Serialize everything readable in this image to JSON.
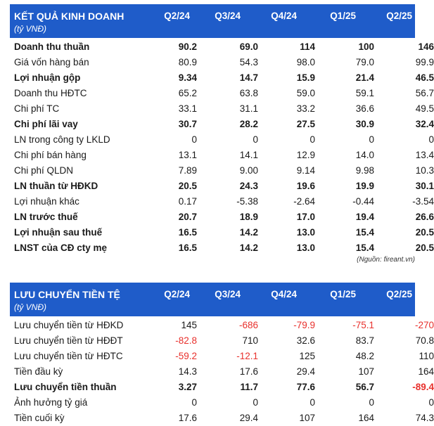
{
  "income": {
    "title": "KẾT QUẢ KINH DOANH",
    "unit": "(tỷ VNĐ)",
    "periods": [
      "Q2/24",
      "Q3/24",
      "Q4/24",
      "Q1/25",
      "Q2/25"
    ],
    "rows": [
      {
        "label": "Doanh thu thuần",
        "bold": true,
        "values": [
          "90.2",
          "69.0",
          "114",
          "100",
          "146"
        ]
      },
      {
        "label": "Giá vốn hàng bán",
        "bold": false,
        "values": [
          "80.9",
          "54.3",
          "98.0",
          "79.0",
          "99.9"
        ]
      },
      {
        "label": "Lợi nhuận gộp",
        "bold": true,
        "values": [
          "9.34",
          "14.7",
          "15.9",
          "21.4",
          "46.5"
        ]
      },
      {
        "label": "Doanh thu HĐTC",
        "bold": false,
        "values": [
          "65.2",
          "63.8",
          "59.0",
          "59.1",
          "56.7"
        ]
      },
      {
        "label": "Chi phí TC",
        "bold": false,
        "values": [
          "33.1",
          "31.1",
          "33.2",
          "36.6",
          "49.5"
        ]
      },
      {
        "label": "Chi phí lãi vay",
        "bold": true,
        "values": [
          "30.7",
          "28.2",
          "27.5",
          "30.9",
          "32.4"
        ]
      },
      {
        "label": "LN trong công ty LKLD",
        "bold": false,
        "values": [
          "0",
          "0",
          "0",
          "0",
          "0"
        ]
      },
      {
        "label": "Chi phí bán hàng",
        "bold": false,
        "values": [
          "13.1",
          "14.1",
          "12.9",
          "14.0",
          "13.4"
        ]
      },
      {
        "label": "Chi phí QLDN",
        "bold": false,
        "values": [
          "7.89",
          "9.00",
          "9.14",
          "9.98",
          "10.3"
        ]
      },
      {
        "label": "LN thuần từ HĐKD",
        "bold": true,
        "values": [
          "20.5",
          "24.3",
          "19.6",
          "19.9",
          "30.1"
        ]
      },
      {
        "label": "Lợi nhuận khác",
        "bold": false,
        "values": [
          "0.17",
          "-5.38",
          "-2.64",
          "-0.44",
          "-3.54"
        ]
      },
      {
        "label": "LN trước thuế",
        "bold": true,
        "values": [
          "20.7",
          "18.9",
          "17.0",
          "19.4",
          "26.6"
        ]
      },
      {
        "label": "Lợi nhuận sau thuế",
        "bold": true,
        "values": [
          "16.5",
          "14.2",
          "13.0",
          "15.4",
          "20.5"
        ]
      },
      {
        "label": "LNST của CĐ cty mẹ",
        "bold": true,
        "values": [
          "16.5",
          "14.2",
          "13.0",
          "15.4",
          "20.5"
        ]
      }
    ],
    "source": "(Nguồn: fireant.vn)"
  },
  "cashflow": {
    "title": "LƯU CHUYỂN TIỀN TỆ",
    "unit": "(tỷ VNĐ)",
    "periods": [
      "Q2/24",
      "Q3/24",
      "Q4/24",
      "Q1/25",
      "Q2/25"
    ],
    "rows": [
      {
        "label": "Lưu chuyển tiền từ HĐKD",
        "bold": false,
        "values": [
          "145",
          "-686",
          "-79.9",
          "-75.1",
          "-270"
        ],
        "neg": [
          false,
          true,
          true,
          true,
          true
        ]
      },
      {
        "label": "Lưu chuyển tiền từ HĐĐT",
        "bold": false,
        "values": [
          "-82.8",
          "710",
          "32.6",
          "83.7",
          "70.8"
        ],
        "neg": [
          true,
          false,
          false,
          false,
          false
        ]
      },
      {
        "label": "Lưu chuyển tiền từ HĐTC",
        "bold": false,
        "values": [
          "-59.2",
          "-12.1",
          "125",
          "48.2",
          "110"
        ],
        "neg": [
          true,
          true,
          false,
          false,
          false
        ]
      },
      {
        "label": "Tiền đầu kỳ",
        "bold": false,
        "values": [
          "14.3",
          "17.6",
          "29.4",
          "107",
          "164"
        ],
        "neg": [
          false,
          false,
          false,
          false,
          false
        ]
      },
      {
        "label": "Lưu chuyển tiền thuần",
        "bold": true,
        "values": [
          "3.27",
          "11.7",
          "77.6",
          "56.7",
          "-89.4"
        ],
        "neg": [
          false,
          false,
          false,
          false,
          true
        ]
      },
      {
        "label": "Ảnh hưởng tỷ giá",
        "bold": false,
        "values": [
          "0",
          "0",
          "0",
          "0",
          "0"
        ],
        "neg": [
          false,
          false,
          false,
          false,
          false
        ]
      },
      {
        "label": "Tiền cuối kỳ",
        "bold": false,
        "values": [
          "17.6",
          "29.4",
          "107",
          "164",
          "74.3"
        ],
        "neg": [
          false,
          false,
          false,
          false,
          false
        ]
      }
    ]
  },
  "colors": {
    "header_bg": "#1f5cc9",
    "negative": "#e8302c"
  }
}
